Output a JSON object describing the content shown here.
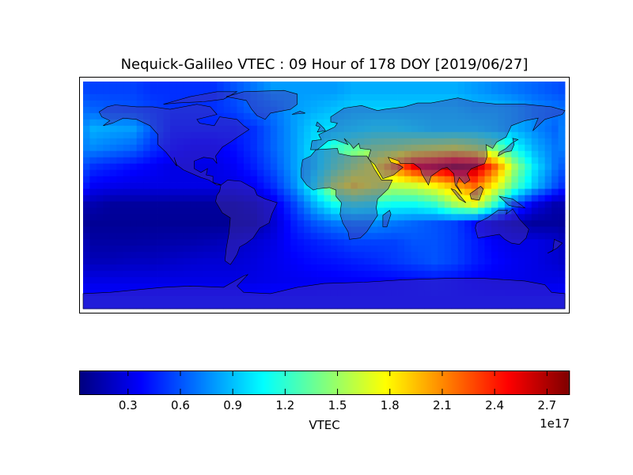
{
  "title": "Nequick-Galileo VTEC : 09 Hour of 178 DOY [2019/06/27]",
  "chart_data": {
    "type": "heatmap",
    "title": "Nequick-Galileo VTEC : 09 Hour of 178 DOY [2019/06/27]",
    "colormap": "jet",
    "value_units_multiplier": "1e17",
    "vmin": 0.02,
    "vmax": 2.83,
    "lon_centers": [
      -172.5,
      -157.5,
      -142.5,
      -127.5,
      -112.5,
      -97.5,
      -82.5,
      -67.5,
      -52.5,
      -37.5,
      -22.5,
      -7.5,
      7.5,
      22.5,
      37.5,
      52.5,
      67.5,
      82.5,
      97.5,
      112.5,
      127.5,
      142.5,
      157.5,
      172.5
    ],
    "lat_centers": [
      82.5,
      67.5,
      52.5,
      37.5,
      22.5,
      7.5,
      -7.5,
      -22.5,
      -37.5,
      -52.5,
      -67.5,
      -82.5
    ],
    "values": [
      [
        0.55,
        0.55,
        0.55,
        0.5,
        0.5,
        0.5,
        0.5,
        0.6,
        0.7,
        0.8,
        0.8,
        0.8,
        0.8,
        0.85,
        0.85,
        0.85,
        0.85,
        0.85,
        0.85,
        0.8,
        0.75,
        0.7,
        0.65,
        0.6
      ],
      [
        0.65,
        0.62,
        0.6,
        0.55,
        0.5,
        0.5,
        0.5,
        0.55,
        0.65,
        0.7,
        0.8,
        0.85,
        0.9,
        0.95,
        0.95,
        0.95,
        0.95,
        0.95,
        0.95,
        0.9,
        0.9,
        0.85,
        0.75,
        0.7
      ],
      [
        0.85,
        0.82,
        0.8,
        0.6,
        0.45,
        0.45,
        0.45,
        0.45,
        0.5,
        0.65,
        0.8,
        0.95,
        1.0,
        1.05,
        1.1,
        1.1,
        1.05,
        1.0,
        1.0,
        1.0,
        0.95,
        0.85,
        0.75,
        0.65
      ],
      [
        0.75,
        0.7,
        0.65,
        0.5,
        0.4,
        0.35,
        0.35,
        0.4,
        0.5,
        0.65,
        0.8,
        1.0,
        1.2,
        1.35,
        1.45,
        1.5,
        1.6,
        1.65,
        1.7,
        1.6,
        1.4,
        1.1,
        0.85,
        0.7
      ],
      [
        0.5,
        0.45,
        0.4,
        0.35,
        0.3,
        0.3,
        0.3,
        0.35,
        0.45,
        0.6,
        0.8,
        1.0,
        1.3,
        1.55,
        1.75,
        2.1,
        2.5,
        2.6,
        2.75,
        2.7,
        2.2,
        1.5,
        1.0,
        0.7
      ],
      [
        0.35,
        0.32,
        0.3,
        0.3,
        0.3,
        0.3,
        0.3,
        0.3,
        0.35,
        0.5,
        0.75,
        1.1,
        1.6,
        1.85,
        1.7,
        1.6,
        1.65,
        1.8,
        2.0,
        2.2,
        1.8,
        1.3,
        0.9,
        0.6
      ],
      [
        0.15,
        0.1,
        0.1,
        0.1,
        0.1,
        0.1,
        0.1,
        0.1,
        0.15,
        0.3,
        0.55,
        0.85,
        1.1,
        1.2,
        1.15,
        1.1,
        1.1,
        1.2,
        1.5,
        1.7,
        1.2,
        0.6,
        0.3,
        0.15
      ],
      [
        0.08,
        0.08,
        0.08,
        0.08,
        0.08,
        0.08,
        0.08,
        0.08,
        0.1,
        0.25,
        0.45,
        0.6,
        0.7,
        0.75,
        0.75,
        0.7,
        0.65,
        0.6,
        0.55,
        0.4,
        0.25,
        0.15,
        0.1,
        0.1
      ],
      [
        0.12,
        0.12,
        0.12,
        0.13,
        0.14,
        0.15,
        0.17,
        0.2,
        0.25,
        0.3,
        0.4,
        0.45,
        0.5,
        0.55,
        0.55,
        0.55,
        0.6,
        0.6,
        0.55,
        0.45,
        0.35,
        0.3,
        0.3,
        0.25
      ],
      [
        0.18,
        0.18,
        0.2,
        0.2,
        0.22,
        0.24,
        0.25,
        0.25,
        0.28,
        0.32,
        0.36,
        0.4,
        0.42,
        0.45,
        0.48,
        0.52,
        0.56,
        0.6,
        0.55,
        0.45,
        0.38,
        0.33,
        0.3,
        0.25
      ],
      [
        0.3,
        0.3,
        0.3,
        0.3,
        0.3,
        0.3,
        0.3,
        0.3,
        0.3,
        0.32,
        0.33,
        0.34,
        0.35,
        0.36,
        0.37,
        0.38,
        0.4,
        0.42,
        0.4,
        0.36,
        0.33,
        0.32,
        0.3,
        0.3
      ],
      [
        0.4,
        0.4,
        0.4,
        0.4,
        0.4,
        0.4,
        0.4,
        0.4,
        0.4,
        0.4,
        0.4,
        0.4,
        0.4,
        0.4,
        0.4,
        0.4,
        0.4,
        0.4,
        0.4,
        0.4,
        0.4,
        0.4,
        0.4,
        0.4
      ]
    ],
    "colorbar": {
      "label": "VTEC",
      "ticks": [
        0.3,
        0.6,
        0.9,
        1.2,
        1.5,
        1.8,
        2.1,
        2.4,
        2.7
      ],
      "tick_labels": [
        "0.3",
        "0.6",
        "0.9",
        "1.2",
        "1.5",
        "1.8",
        "2.1",
        "2.4",
        "2.7"
      ],
      "offset_label": "1e17",
      "orientation": "horizontal",
      "placement": "bottom"
    }
  }
}
